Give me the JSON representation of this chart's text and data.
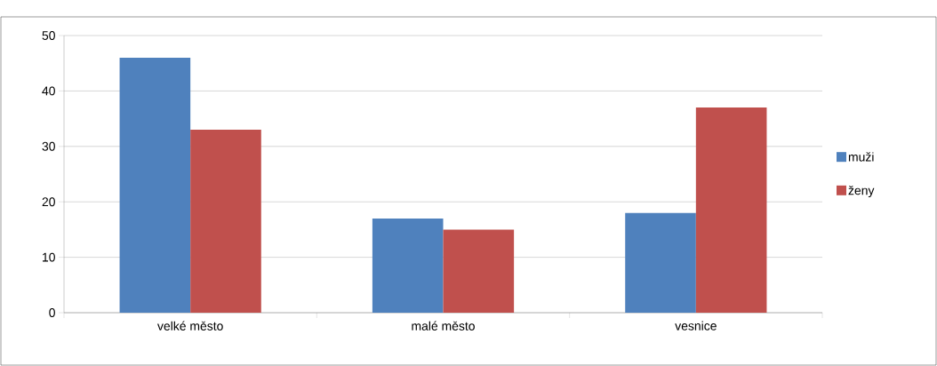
{
  "chart_data": {
    "type": "bar",
    "categories": [
      "velké město",
      "malé město",
      "vesnice"
    ],
    "series": [
      {
        "name": "muži",
        "color": "#4f81bd",
        "values": [
          46,
          17,
          18
        ]
      },
      {
        "name": "ženy",
        "color": "#c0504d",
        "values": [
          33,
          15,
          37
        ]
      }
    ],
    "ylim": [
      0,
      50
    ],
    "yticks": [
      0,
      10,
      20,
      30,
      40,
      50
    ],
    "grid": "y",
    "legend": "right"
  }
}
